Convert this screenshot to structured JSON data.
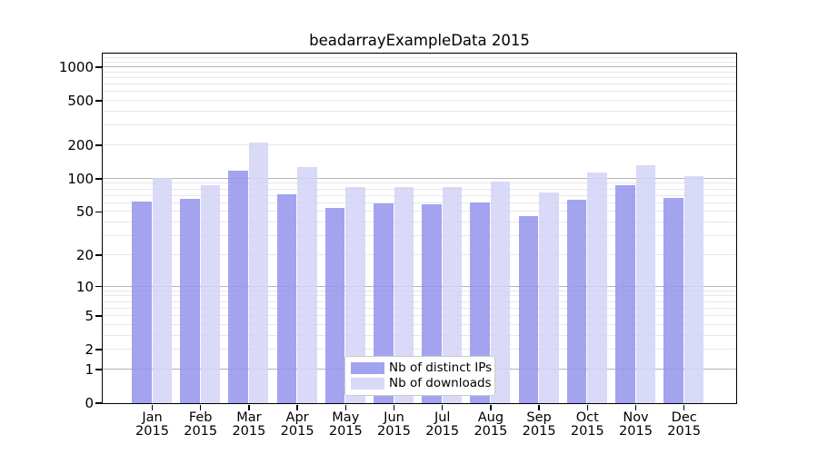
{
  "chart_data": {
    "type": "bar",
    "title": "beadarrayExampleData 2015",
    "year": "2015",
    "categories": [
      "Jan",
      "Feb",
      "Mar",
      "Apr",
      "May",
      "Jun",
      "Jul",
      "Aug",
      "Sep",
      "Oct",
      "Nov",
      "Dec"
    ],
    "series": [
      {
        "name": "Nb of distinct IPs",
        "color": "#9696ee",
        "values": [
          62,
          65,
          117,
          71,
          54,
          59,
          58,
          60,
          45,
          64,
          87,
          66
        ]
      },
      {
        "name": "Nb of downloads",
        "color": "#d4d4f7",
        "values": [
          100,
          87,
          208,
          127,
          83,
          83,
          84,
          93,
          74,
          113,
          131,
          104
        ]
      }
    ],
    "yscale": "log1p",
    "ylim": [
      0,
      1325
    ],
    "yticks": [
      0,
      1,
      2,
      5,
      10,
      20,
      50,
      100,
      200,
      500,
      1000
    ],
    "grid": true,
    "legend_position": "bottom-center",
    "colors": {
      "major_grid": "#b3b3b3",
      "minor_grid": "#e7e7e7",
      "spine": "#000000",
      "text": "#000000",
      "background": "#ffffff"
    }
  }
}
